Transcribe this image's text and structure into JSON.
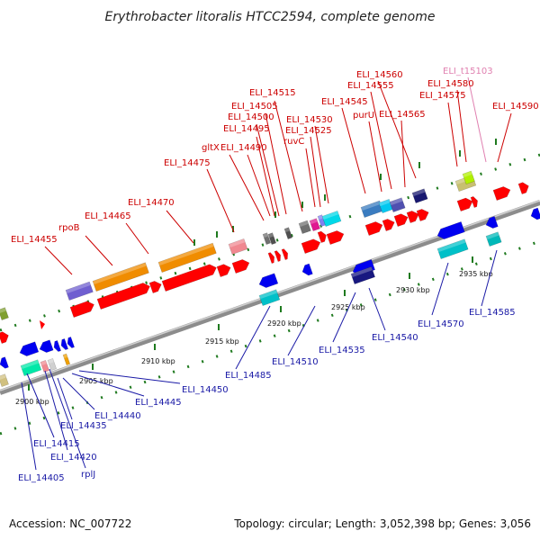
{
  "title": "Erythrobacter litoralis HTCC2594, complete genome",
  "footer": {
    "accession": "Accession: NC_007722",
    "topology": "Topology: circular; Length: 3,052,398 bp; Genes: 3,056"
  },
  "colors": {
    "forward_label": "#cc0000",
    "reverse_label": "#1a1aa6",
    "rna_label": "#e080b0",
    "backbone": "#8c8c8c",
    "tick": "#1f7a1f"
  },
  "scale": [
    "2900 kbp",
    "2905 kbp",
    "2910 kbp",
    "2915 kbp",
    "2920 kbp",
    "2925 kbp",
    "2930 kbp",
    "2935 kbp"
  ],
  "forward_labels": [
    "ELI_14455",
    "rpoB",
    "ELI_14465",
    "ELI_14470",
    "ELI_14475",
    "gltX",
    "ELI_14490",
    "ELI_14495",
    "ELI_14500",
    "ELI_14505",
    "ELI_14515",
    "ruvC",
    "ELI_14525",
    "ELI_14530",
    "ELI_14545",
    "purU",
    "ELI_14555",
    "ELI_14560",
    "ELI_14565",
    "ELI_14575",
    "ELI_14580",
    "ELI_14590"
  ],
  "rna_labels": [
    "ELI_t15103"
  ],
  "reverse_labels": [
    "ELI_14405",
    "rplJ",
    "ELI_14420",
    "ELI_14415",
    "ELI_14435",
    "ELI_14440",
    "ELI_14445",
    "ELI_14450",
    "ELI_14485",
    "ELI_14510",
    "ELI_14535",
    "ELI_14540",
    "ELI_14570",
    "ELI_14585"
  ]
}
